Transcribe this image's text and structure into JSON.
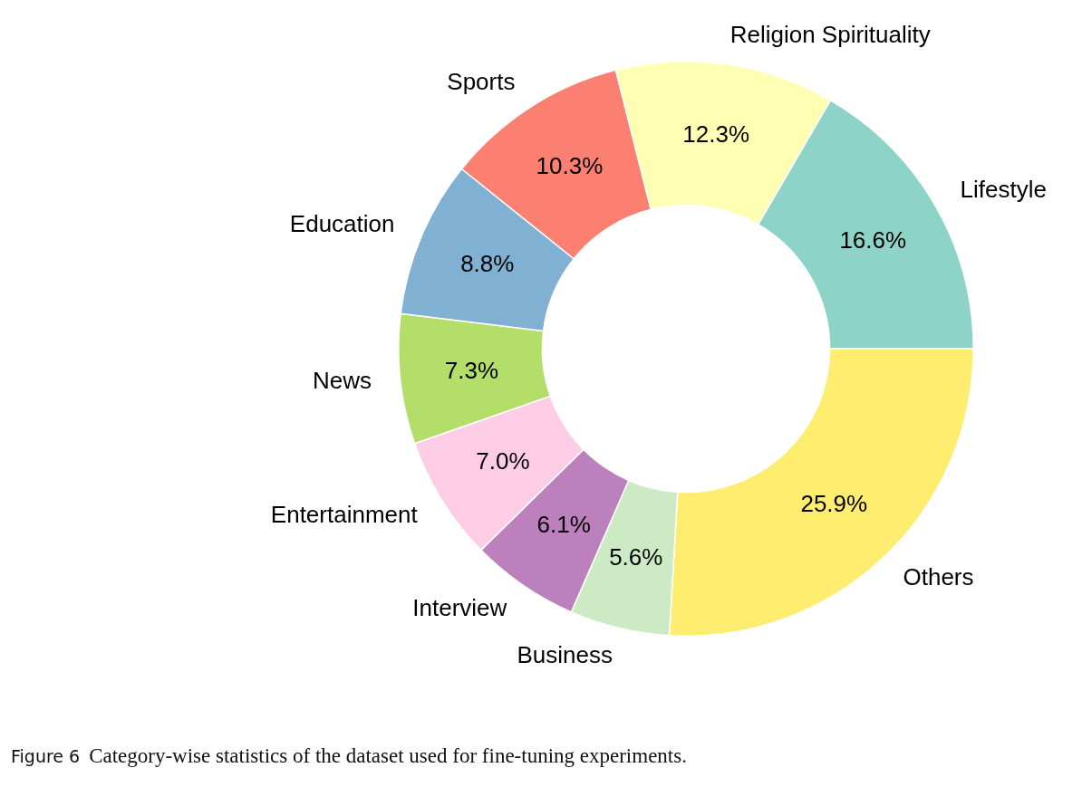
{
  "chart_data": {
    "type": "donut",
    "categories": [
      "Lifestyle",
      "Religion Spirituality",
      "Sports",
      "Education",
      "News",
      "Entertainment",
      "Interview",
      "Business",
      "Others"
    ],
    "values": [
      16.6,
      12.3,
      10.3,
      8.8,
      7.3,
      7.0,
      6.1,
      5.6,
      25.9
    ],
    "value_labels": [
      "16.6%",
      "12.3%",
      "10.3%",
      "8.8%",
      "7.3%",
      "7.0%",
      "6.1%",
      "5.6%",
      "25.9%"
    ],
    "colors": [
      "#8dd3c7",
      "#ffffb3",
      "#fb8072",
      "#80b1d3",
      "#b3de69",
      "#fccde5",
      "#bc80bd",
      "#ccebc5",
      "#ffed6f"
    ],
    "legend": false,
    "annotations": [
      "Figure 6",
      "Category-wise statistics of the dataset used for fine-tuning experiments."
    ]
  }
}
